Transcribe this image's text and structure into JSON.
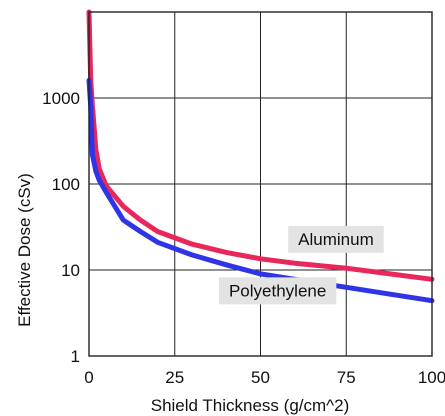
{
  "chart_data": {
    "type": "line",
    "xlabel": "Shield Thickness (g/cm^2)",
    "ylabel": "Effective Dose (cSv)",
    "xlim": [
      0,
      100
    ],
    "ylim": [
      1,
      10000
    ],
    "y_scale": "log",
    "grid": true,
    "x_ticks": [
      "0",
      "25",
      "50",
      "75",
      "100"
    ],
    "y_ticks": [
      "1",
      "10",
      "100",
      "1000"
    ],
    "x_tick_values": [
      0,
      25,
      50,
      75,
      100
    ],
    "y_tick_values": [
      1,
      10,
      100,
      1000
    ],
    "series": [
      {
        "name": "Aluminum",
        "color": "#e8285a",
        "points": [
          [
            0,
            10000
          ],
          [
            0.5,
            1600
          ],
          [
            1,
            800
          ],
          [
            2,
            250
          ],
          [
            3,
            150
          ],
          [
            5,
            95
          ],
          [
            10,
            55
          ],
          [
            15,
            38
          ],
          [
            20,
            28
          ],
          [
            30,
            20
          ],
          [
            40,
            16
          ],
          [
            50,
            13.5
          ],
          [
            60,
            12
          ],
          [
            75,
            10.5
          ],
          [
            100,
            7.8
          ]
        ]
      },
      {
        "name": "Polyethylene",
        "color": "#2f35e6",
        "points": [
          [
            0,
            1600
          ],
          [
            0.5,
            800
          ],
          [
            1,
            220
          ],
          [
            2,
            140
          ],
          [
            3,
            110
          ],
          [
            5,
            80
          ],
          [
            10,
            38
          ],
          [
            15,
            28
          ],
          [
            20,
            21
          ],
          [
            30,
            15
          ],
          [
            40,
            11.5
          ],
          [
            50,
            9
          ],
          [
            60,
            7.8
          ],
          [
            75,
            6.3
          ],
          [
            100,
            4.4
          ]
        ]
      }
    ],
    "annotations": [
      {
        "text": "Aluminum",
        "x": 72,
        "y": 23
      },
      {
        "text": "Polyethylene",
        "x": 55,
        "y": 5.8
      }
    ]
  }
}
